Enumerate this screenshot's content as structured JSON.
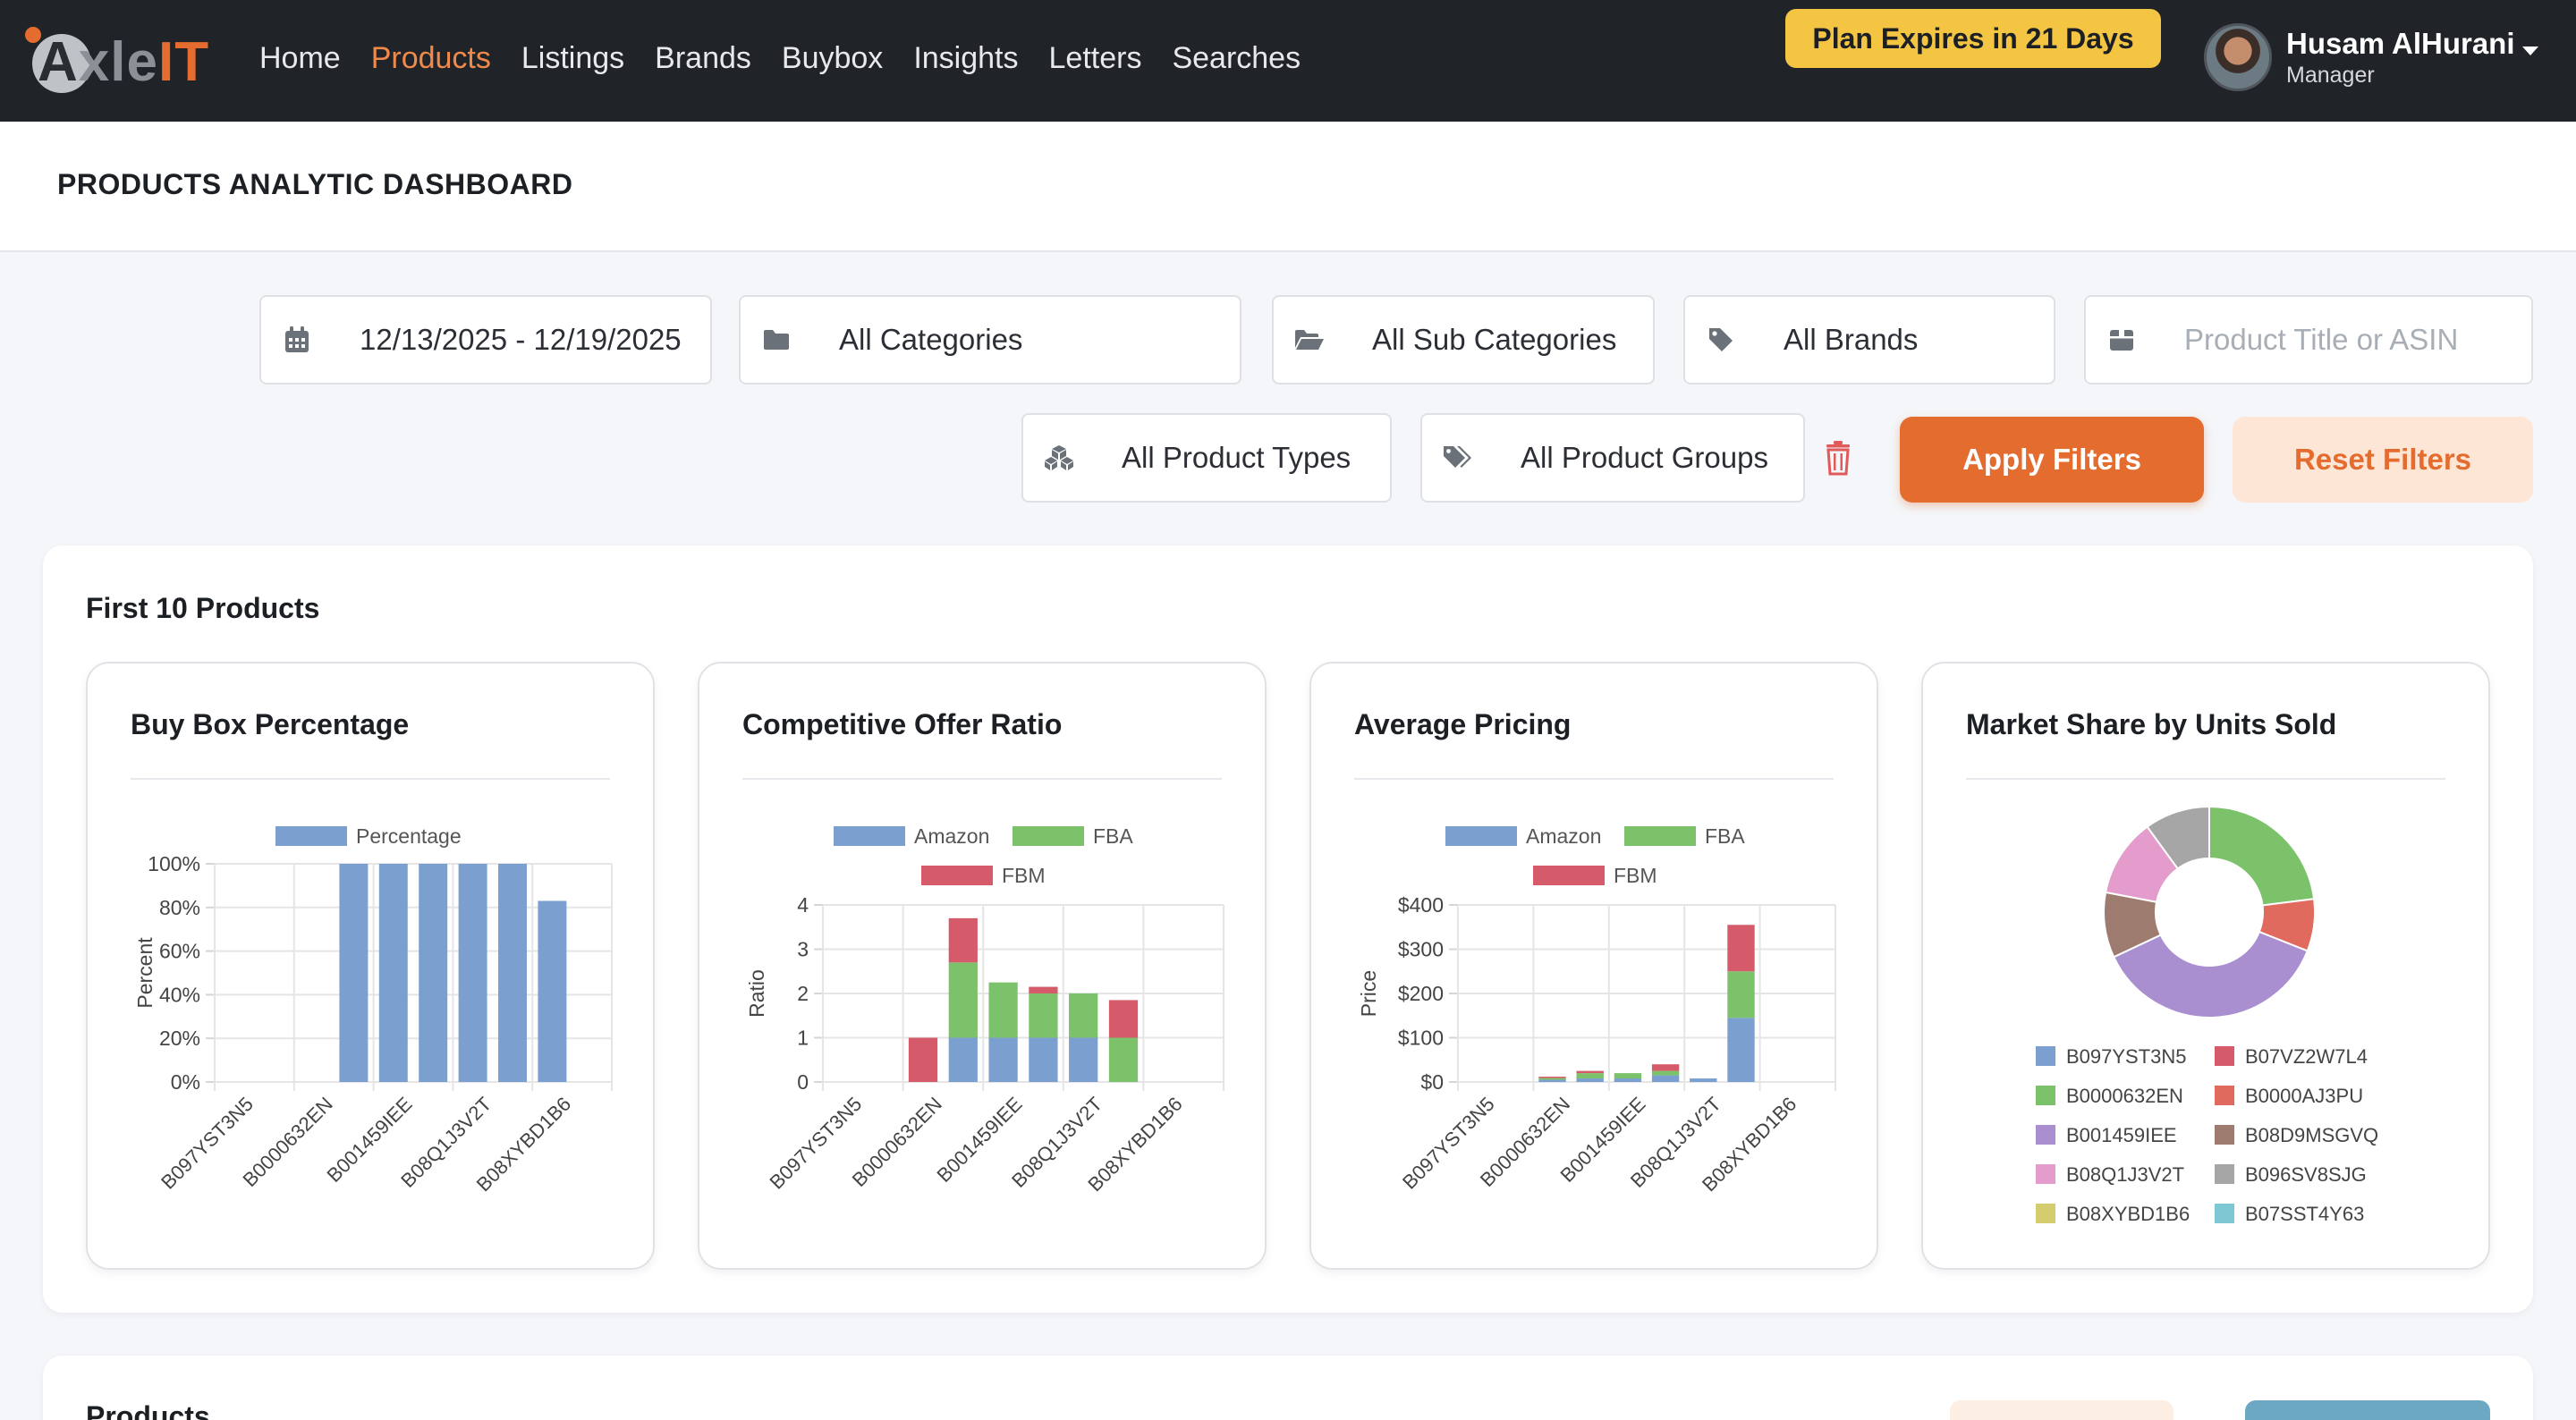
{
  "nav": {
    "logo": "AxleIT",
    "items": [
      "Home",
      "Products",
      "Listings",
      "Brands",
      "Buybox",
      "Insights",
      "Letters",
      "Searches"
    ],
    "active": "Products",
    "plan_badge": "Plan Expires in 21 Days",
    "user_name": "Husam AlHurani",
    "user_role": "Manager"
  },
  "page": {
    "title": "PRODUCTS ANALYTIC DASHBOARD"
  },
  "filters": {
    "date_range": "12/13/2025 - 12/19/2025",
    "category": "All Categories",
    "sub_category": "All Sub Categories",
    "brand": "All Brands",
    "search_placeholder": "Product Title or ASIN",
    "product_type": "All Product Types",
    "product_group": "All Product Groups",
    "apply_label": "Apply Filters",
    "reset_label": "Reset Filters"
  },
  "section": {
    "title": "First 10 Products",
    "bottom_title": "Products"
  },
  "colors": {
    "accent": "#e36c2e",
    "badge": "#f4c542",
    "amazon": "#7b9fcf",
    "fba": "#7cc26a",
    "fbm": "#d55b6a"
  },
  "chart_data": [
    {
      "type": "bar",
      "title": "Buy Box Percentage",
      "ylabel": "Percent",
      "ylim": [
        0,
        100
      ],
      "yticks": [
        "0%",
        "20%",
        "40%",
        "60%",
        "80%",
        "100%"
      ],
      "legend_position": "top",
      "grid": true,
      "categories": [
        "B097YST3N5",
        "B07VZ2W7L4",
        "B0000632EN",
        "B0000AJ3PU",
        "B001459IEE",
        "B08D9MSGVQ",
        "B08Q1J3V2T",
        "B096SV8SJG",
        "B08XYBD1B6",
        "B07SST4Y63"
      ],
      "tick_labels": [
        "B097YST3N5",
        "B0000632EN",
        "B001459IEE",
        "B08Q1J3V2T",
        "B08XYBD1B6"
      ],
      "series": [
        {
          "name": "Percentage",
          "values": [
            0,
            0,
            0,
            100,
            100,
            100,
            100,
            100,
            83,
            0
          ]
        }
      ]
    },
    {
      "type": "bar",
      "stacked": true,
      "title": "Competitive Offer Ratio",
      "ylabel": "Ratio",
      "ylim": [
        0,
        4
      ],
      "yticks": [
        "0",
        "1",
        "2",
        "3",
        "4"
      ],
      "legend_position": "top",
      "grid": true,
      "categories": [
        "B097YST3N5",
        "B07VZ2W7L4",
        "B0000632EN",
        "B0000AJ3PU",
        "B001459IEE",
        "B08D9MSGVQ",
        "B08Q1J3V2T",
        "B096SV8SJG",
        "B08XYBD1B6",
        "B07SST4Y63"
      ],
      "tick_labels": [
        "B097YST3N5",
        "B0000632EN",
        "B001459IEE",
        "B08Q1J3V2T",
        "B08XYBD1B6"
      ],
      "series": [
        {
          "name": "Amazon",
          "values": [
            0,
            0,
            0,
            1,
            1,
            1,
            1,
            0,
            0,
            0
          ]
        },
        {
          "name": "FBA",
          "values": [
            0,
            0,
            0,
            1.7,
            1.25,
            1,
            1,
            1,
            0,
            0
          ]
        },
        {
          "name": "FBM",
          "values": [
            0,
            0,
            1,
            1,
            0,
            0.15,
            0,
            0.85,
            0,
            0
          ]
        }
      ]
    },
    {
      "type": "bar",
      "stacked": true,
      "title": "Average Pricing",
      "ylabel": "Price",
      "ylim": [
        0,
        400
      ],
      "yticks": [
        "$0",
        "$100",
        "$200",
        "$300",
        "$400"
      ],
      "legend_position": "top",
      "grid": true,
      "categories": [
        "B097YST3N5",
        "B07VZ2W7L4",
        "B0000632EN",
        "B0000AJ3PU",
        "B001459IEE",
        "B08D9MSGVQ",
        "B08Q1J3V2T",
        "B096SV8SJG",
        "B08XYBD1B6",
        "B07SST4Y63"
      ],
      "tick_labels": [
        "B097YST3N5",
        "B0000632EN",
        "B001459IEE",
        "B08Q1J3V2T",
        "B08XYBD1B6"
      ],
      "series": [
        {
          "name": "Amazon",
          "values": [
            0,
            0,
            5,
            8,
            8,
            15,
            8,
            145,
            0,
            0
          ]
        },
        {
          "name": "FBA",
          "values": [
            0,
            0,
            4,
            12,
            12,
            10,
            0,
            105,
            0,
            0
          ]
        },
        {
          "name": "FBM",
          "values": [
            0,
            0,
            3,
            5,
            0,
            15,
            0,
            105,
            0,
            0
          ]
        }
      ]
    },
    {
      "type": "pie",
      "donut": true,
      "title": "Market Share by Units Sold",
      "legend_position": "bottom",
      "labels": [
        "B097YST3N5",
        "B07VZ2W7L4",
        "B0000632EN",
        "B0000AJ3PU",
        "B001459IEE",
        "B08D9MSGVQ",
        "B08Q1J3V2T",
        "B096SV8SJG",
        "B08XYBD1B6",
        "B07SST4Y63"
      ],
      "values": [
        0,
        0,
        23,
        8,
        37,
        10,
        12,
        10,
        0,
        0
      ],
      "colors": [
        "#7b9fcf",
        "#d55b6a",
        "#7cc26a",
        "#e06a5e",
        "#a98ed0",
        "#9e7b6f",
        "#e39ccb",
        "#a6a6a6",
        "#d4cd6e",
        "#7ec8d4"
      ]
    }
  ]
}
